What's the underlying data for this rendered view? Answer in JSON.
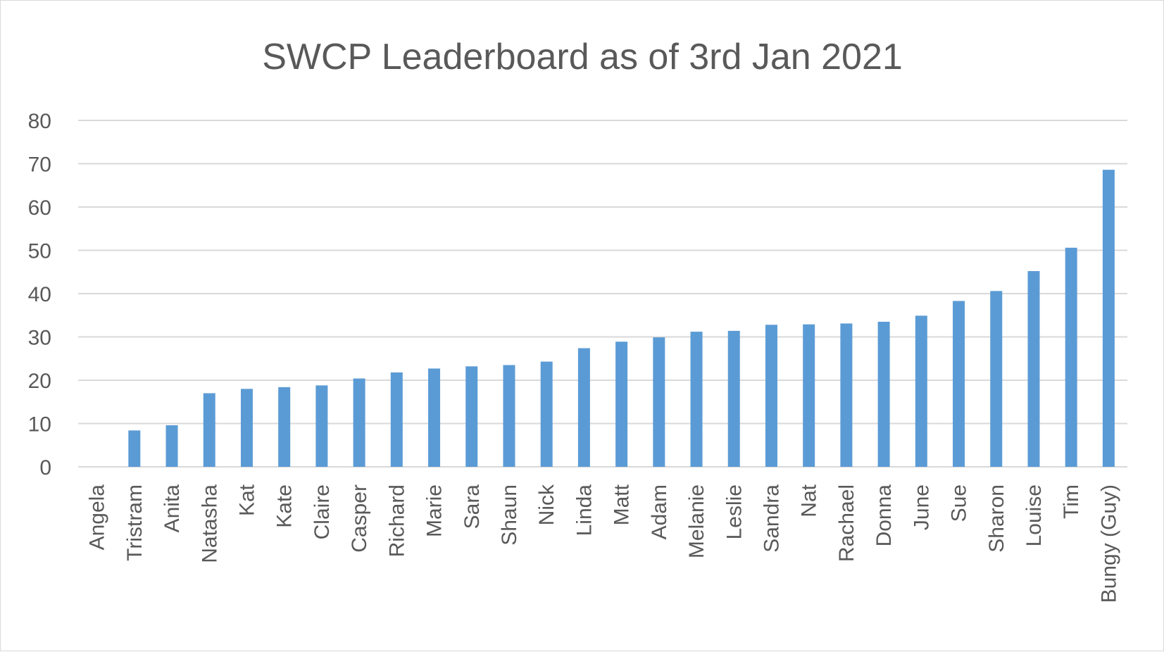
{
  "chart_data": {
    "type": "bar",
    "title": "SWCP Leaderboard as of 3rd Jan 2021",
    "xlabel": "",
    "ylabel": "",
    "ylim": [
      0,
      80
    ],
    "yticks": [
      0,
      10,
      20,
      30,
      40,
      50,
      60,
      70,
      80
    ],
    "grid": true,
    "legend": "none",
    "bar_color": "#5b9bd5",
    "categories": [
      "Angela",
      "Tristram",
      "Anita",
      "Natasha",
      "Kat",
      "Kate",
      "Claire",
      "Casper",
      "Richard",
      "Marie",
      "Sara",
      "Shaun",
      "Nick",
      "Linda",
      "Matt",
      "Adam",
      "Melanie",
      "Leslie",
      "Sandra",
      "Nat",
      "Rachael",
      "Donna",
      "June",
      "Sue",
      "Sharon",
      "Louise",
      "Tim",
      "Bungy (Guy)"
    ],
    "values": [
      0,
      8.4,
      9.6,
      17.0,
      18.0,
      18.4,
      18.8,
      20.4,
      21.8,
      22.7,
      23.2,
      23.5,
      24.3,
      27.4,
      28.9,
      29.9,
      31.2,
      31.4,
      32.8,
      32.9,
      33.1,
      33.5,
      34.9,
      38.3,
      40.6,
      45.2,
      50.6,
      68.6
    ]
  }
}
